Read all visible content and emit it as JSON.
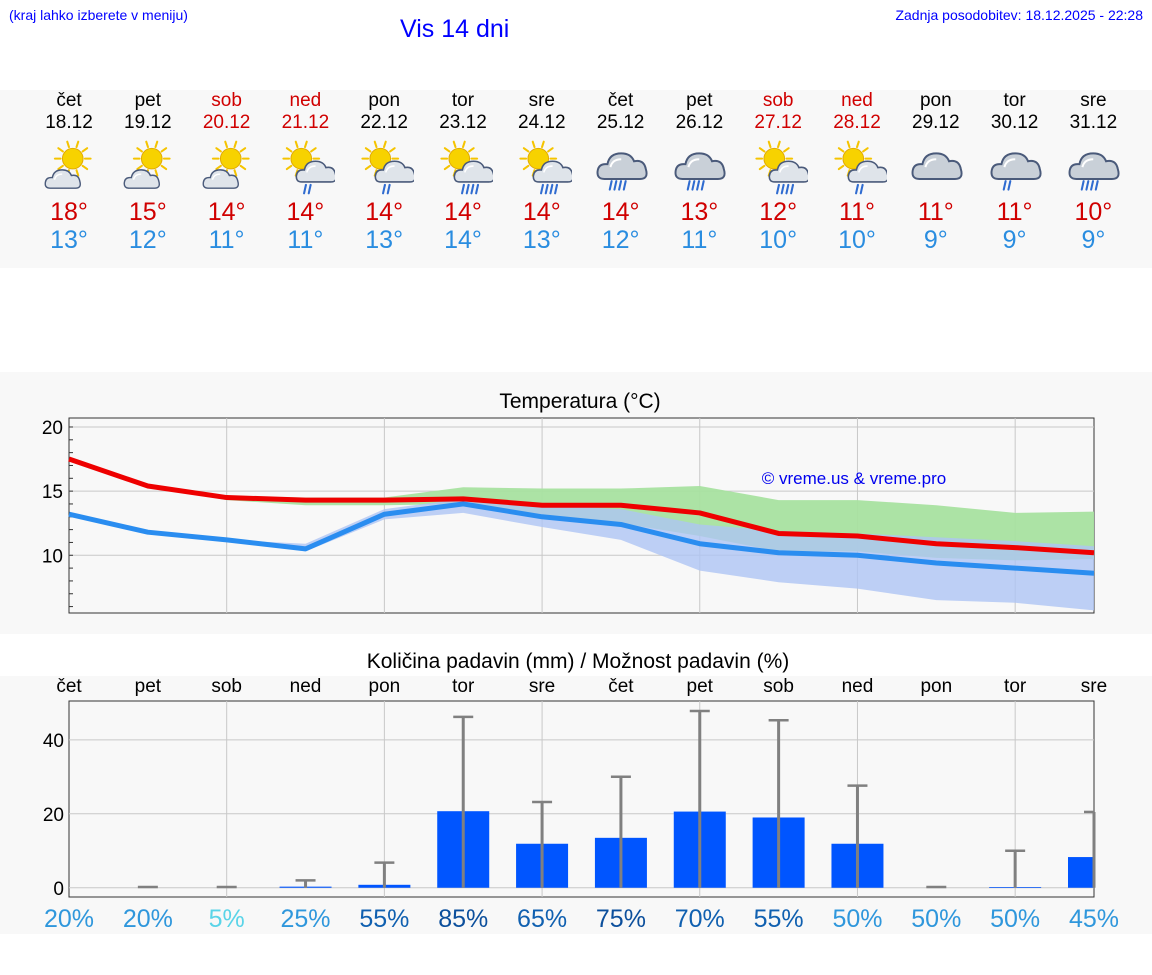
{
  "header": {
    "hint": "(kraj lahko izberete v meniju)",
    "title": "Vis 14 dni",
    "updated": "Zadnja posodobitev: 18.12.2025 - 22:28"
  },
  "days": [
    {
      "name": "čet",
      "date": "18.12",
      "icon": "sun-cloud-icon",
      "max": "18°",
      "min": "13°",
      "weekend": false
    },
    {
      "name": "pet",
      "date": "19.12",
      "icon": "sun-cloud-icon",
      "max": "15°",
      "min": "12°",
      "weekend": false
    },
    {
      "name": "sob",
      "date": "20.12",
      "icon": "sun-cloud-icon",
      "max": "14°",
      "min": "11°",
      "weekend": true
    },
    {
      "name": "ned",
      "date": "21.12",
      "icon": "sun-cloud-light-rain-icon",
      "max": "14°",
      "min": "11°",
      "weekend": true
    },
    {
      "name": "pon",
      "date": "22.12",
      "icon": "sun-cloud-light-rain-icon",
      "max": "14°",
      "min": "13°",
      "weekend": false
    },
    {
      "name": "tor",
      "date": "23.12",
      "icon": "sun-cloud-rain-icon",
      "max": "14°",
      "min": "14°",
      "weekend": false
    },
    {
      "name": "sre",
      "date": "24.12",
      "icon": "sun-cloud-rain-icon",
      "max": "14°",
      "min": "13°",
      "weekend": false
    },
    {
      "name": "čet",
      "date": "25.12",
      "icon": "cloud-rain-icon",
      "max": "14°",
      "min": "12°",
      "weekend": false
    },
    {
      "name": "pet",
      "date": "26.12",
      "icon": "cloud-rain-icon",
      "max": "13°",
      "min": "11°",
      "weekend": false
    },
    {
      "name": "sob",
      "date": "27.12",
      "icon": "sun-cloud-rain-icon",
      "max": "12°",
      "min": "10°",
      "weekend": true
    },
    {
      "name": "ned",
      "date": "28.12",
      "icon": "sun-cloud-light-rain-icon",
      "max": "11°",
      "min": "10°",
      "weekend": true
    },
    {
      "name": "pon",
      "date": "29.12",
      "icon": "cloud-icon",
      "max": "11°",
      "min": "9°",
      "weekend": false
    },
    {
      "name": "tor",
      "date": "30.12",
      "icon": "cloud-light-rain-icon",
      "max": "11°",
      "min": "9°",
      "weekend": false
    },
    {
      "name": "sre",
      "date": "31.12",
      "icon": "cloud-rain-icon",
      "max": "10°",
      "min": "9°",
      "weekend": false
    }
  ],
  "colors": {
    "max": "#ee0000",
    "min": "#2a8df0",
    "band_max": "#a8e2a0",
    "band_min": "#aec4f4",
    "band_overlap": "#7fc6a8",
    "bar": "#0055ff",
    "whisker": "#808080",
    "copyright": "#0000ee"
  },
  "chart_data": [
    {
      "type": "line",
      "title": "Temperatura (°C)",
      "ylim": [
        5.5,
        20.7
      ],
      "yticks": [
        10,
        15,
        20
      ],
      "grid": true,
      "x": [
        0,
        1,
        2,
        3,
        4,
        5,
        6,
        7,
        8,
        9,
        10,
        11,
        12,
        13
      ],
      "copyright": "© vreme.us & vreme.pro",
      "series": [
        {
          "name": "max",
          "values": [
            17.5,
            15.4,
            14.5,
            14.3,
            14.3,
            14.4,
            13.9,
            13.9,
            13.3,
            11.7,
            11.5,
            10.9,
            10.6,
            10.2
          ]
        },
        {
          "name": "min",
          "values": [
            13.2,
            11.8,
            11.2,
            10.5,
            13.2,
            14.0,
            13.0,
            12.4,
            10.9,
            10.2,
            10.0,
            9.4,
            9.0,
            8.6
          ]
        },
        {
          "name": "max_range_low",
          "values": [
            17.5,
            15.4,
            14.3,
            13.9,
            13.9,
            14.0,
            13.2,
            12.5,
            11.5,
            10.3,
            10.3,
            9.8,
            9.6,
            9.7
          ]
        },
        {
          "name": "max_range_high",
          "values": [
            17.5,
            15.4,
            14.6,
            14.5,
            14.5,
            15.3,
            15.2,
            15.2,
            15.4,
            14.3,
            14.3,
            13.9,
            13.3,
            13.4
          ]
        },
        {
          "name": "min_range_low",
          "values": [
            13.2,
            11.8,
            11.2,
            10.3,
            12.8,
            13.3,
            12.2,
            11.2,
            8.8,
            7.9,
            7.4,
            6.5,
            6.3,
            5.7
          ]
        },
        {
          "name": "min_range_high",
          "values": [
            13.2,
            11.8,
            11.2,
            10.9,
            13.6,
            14.4,
            13.9,
            13.6,
            12.4,
            11.9,
            11.7,
            11.4,
            11.1,
            10.7
          ]
        }
      ]
    },
    {
      "type": "bar",
      "title": "Količina padavin (mm) / Možnost padavin (%)",
      "categories": [
        "čet",
        "pet",
        "sob",
        "ned",
        "pon",
        "tor",
        "sre",
        "čet",
        "pet",
        "sob",
        "ned",
        "pon",
        "tor",
        "sre"
      ],
      "ylim": [
        -2.5,
        50.5
      ],
      "yticks": [
        0,
        20,
        40
      ],
      "grid": true,
      "values": [
        0,
        0,
        0,
        0.3,
        0.8,
        20.7,
        11.9,
        13.5,
        20.6,
        19.0,
        11.9,
        0,
        0.2,
        8.3
      ],
      "whisker_high": [
        0,
        0.2,
        0.2,
        2.0,
        6.8,
        46.2,
        23.2,
        30.0,
        47.8,
        45.3,
        27.6,
        0.2,
        10.0,
        20.5
      ],
      "probabilities": [
        {
          "label": "20%",
          "color": "#2f97dc"
        },
        {
          "label": "20%",
          "color": "#2f97dc"
        },
        {
          "label": "5%",
          "color": "#5ad4e8"
        },
        {
          "label": "25%",
          "color": "#2f97dc"
        },
        {
          "label": "55%",
          "color": "#1060b0"
        },
        {
          "label": "85%",
          "color": "#0c4f9c"
        },
        {
          "label": "65%",
          "color": "#1060b0"
        },
        {
          "label": "75%",
          "color": "#0c4f9c"
        },
        {
          "label": "70%",
          "color": "#1060b0"
        },
        {
          "label": "55%",
          "color": "#1060b0"
        },
        {
          "label": "50%",
          "color": "#2f97dc"
        },
        {
          "label": "50%",
          "color": "#2f97dc"
        },
        {
          "label": "50%",
          "color": "#2f97dc"
        },
        {
          "label": "45%",
          "color": "#2f97dc"
        }
      ]
    }
  ]
}
